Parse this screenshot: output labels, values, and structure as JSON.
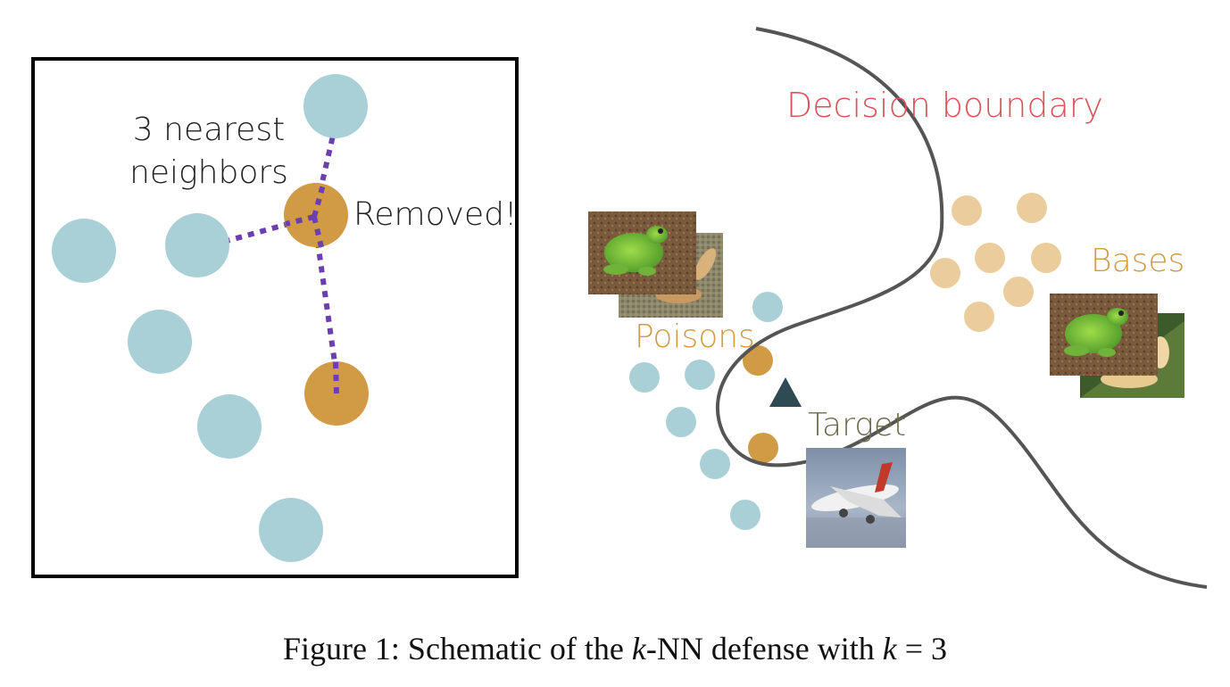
{
  "left_panel": {
    "label_line1": "3 nearest",
    "label_line2": "neighbors",
    "removed_label": "Removed!"
  },
  "right_panel": {
    "decision_boundary_label": "Decision boundary",
    "bases_label": "Bases",
    "poisons_label": "Poisons",
    "target_label": "Target"
  },
  "caption": {
    "prefix": "Figure 1: Schematic of the ",
    "k1": "k",
    "middle": "-NN defense with ",
    "k2": "k",
    "suffix": " = 3"
  },
  "colors": {
    "blue_point": "#a8d0d6",
    "orange_point": "#d19a45",
    "base_point": "#ebcc9c",
    "neighbor_line": "#6b3fb0",
    "boundary": "#555555",
    "target_marker": "#2e4a52",
    "decision_label": "#d9535b",
    "orange_label": "#d19a45",
    "target_label": "#6b6b4a"
  },
  "icons": {
    "poison_images": [
      "frog-image",
      "frog-noisy-image"
    ],
    "base_images": [
      "frog-image",
      "frog-leaf-image"
    ],
    "target_image": "airplane-image",
    "target_marker": "triangle-icon"
  }
}
